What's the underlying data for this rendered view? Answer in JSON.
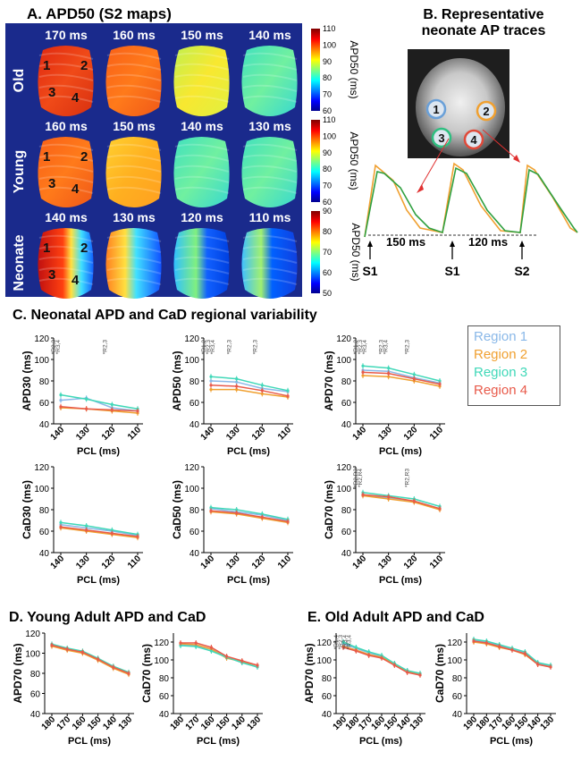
{
  "panels": {
    "a_title": "A. APD50 (S2 maps)",
    "b_title_line1": "B. Representative",
    "b_title_line2": "neonate AP traces",
    "c_title": "C. Neonatal APD and CaD regional variability",
    "d_title": "D. Young Adult APD and CaD",
    "e_title": "E. Old Adult APD and CaD"
  },
  "maps": {
    "rows": [
      {
        "label": "Old",
        "pcls": [
          "170 ms",
          "160 ms",
          "150 ms",
          "140 ms"
        ],
        "colorbar": {
          "label": "APD50 (ms)",
          "ticks": [
            "110",
            "100",
            "90",
            "80",
            "70",
            "60"
          ]
        }
      },
      {
        "label": "Young",
        "pcls": [
          "160 ms",
          "150 ms",
          "140 ms",
          "130 ms"
        ],
        "colorbar": {
          "label": "APD50 (ms)",
          "ticks": [
            "110",
            "100",
            "90",
            "80",
            "70",
            "60"
          ]
        }
      },
      {
        "label": "Neonate",
        "pcls": [
          "140 ms",
          "130 ms",
          "120 ms",
          "110 ms"
        ],
        "colorbar": {
          "label": "APD50 (ms)",
          "ticks": [
            "90",
            "80",
            "70",
            "60",
            "50"
          ]
        }
      }
    ],
    "region_numbers": [
      "1",
      "2",
      "3",
      "4"
    ]
  },
  "traces": {
    "region_circles": [
      {
        "label": "1",
        "color": "#6aa0d8"
      },
      {
        "label": "2",
        "color": "#f0a030"
      },
      {
        "label": "3",
        "color": "#2ebf80"
      },
      {
        "label": "4",
        "color": "#e04a3a"
      }
    ],
    "interval1": "150 ms",
    "interval2": "120 ms",
    "stim_labels": [
      "S1",
      "S1",
      "S2"
    ]
  },
  "legend": {
    "items": [
      {
        "label": "Region 1",
        "color": "#8ab8e8"
      },
      {
        "label": "Region 2",
        "color": "#f0a030"
      },
      {
        "label": "Region 3",
        "color": "#40d8b8"
      },
      {
        "label": "Region 4",
        "color": "#e85a4a"
      }
    ]
  },
  "chart_data": [
    {
      "type": "line",
      "id": "C-APD30",
      "xlabel": "PCL (ms)",
      "ylabel": "APD30 (ms)",
      "categories": [
        "140",
        "130",
        "120",
        "110"
      ],
      "ylim": [
        40,
        120
      ],
      "yticks": [
        "40",
        "60",
        "80",
        "100",
        "120"
      ],
      "series": [
        {
          "name": "Region 1",
          "values": [
            62,
            64,
            55,
            52
          ]
        },
        {
          "name": "Region 2",
          "values": [
            55,
            54,
            52,
            50
          ]
        },
        {
          "name": "Region 3",
          "values": [
            67,
            63,
            58,
            54
          ]
        },
        {
          "name": "Region 4",
          "values": [
            56,
            54,
            53,
            52
          ]
        }
      ],
      "annotations": [
        {
          "at": "140",
          "lines": [
            "*R2,3",
            "*R3,4"
          ]
        },
        {
          "at": "120",
          "lines": [
            "*R2,3"
          ]
        }
      ]
    },
    {
      "type": "line",
      "id": "C-APD50",
      "xlabel": "PCL (ms)",
      "ylabel": "APD50 (ms)",
      "categories": [
        "140",
        "130",
        "120",
        "110"
      ],
      "ylim": [
        40,
        120
      ],
      "yticks": [
        "40",
        "60",
        "80",
        "100",
        "120"
      ],
      "series": [
        {
          "name": "Region 1",
          "values": [
            80,
            79,
            73,
            70
          ]
        },
        {
          "name": "Region 2",
          "values": [
            72,
            72,
            68,
            65
          ]
        },
        {
          "name": "Region 3",
          "values": [
            84,
            82,
            76,
            71
          ]
        },
        {
          "name": "Region 4",
          "values": [
            76,
            75,
            71,
            66
          ]
        }
      ],
      "annotations": [
        {
          "at": "140",
          "lines": [
            "*R1,2",
            "*R2,3",
            "*R3,4"
          ]
        },
        {
          "at": "130",
          "lines": [
            "*R2,3"
          ]
        },
        {
          "at": "120",
          "lines": [
            "*R2,3"
          ]
        }
      ]
    },
    {
      "type": "line",
      "id": "C-APD70",
      "xlabel": "PCL (ms)",
      "ylabel": "APD70 (ms)",
      "categories": [
        "140",
        "130",
        "120",
        "110"
      ],
      "ylim": [
        40,
        120
      ],
      "yticks": [
        "40",
        "60",
        "80",
        "100",
        "120"
      ],
      "series": [
        {
          "name": "Region 1",
          "values": [
            90,
            89,
            83,
            78
          ]
        },
        {
          "name": "Region 2",
          "values": [
            85,
            84,
            80,
            75
          ]
        },
        {
          "name": "Region 3",
          "values": [
            94,
            92,
            86,
            80
          ]
        },
        {
          "name": "Region 4",
          "values": [
            88,
            87,
            82,
            77
          ]
        }
      ],
      "annotations": [
        {
          "at": "140",
          "lines": [
            "*R1,2",
            "*R2,3",
            "*R3,4"
          ]
        },
        {
          "at": "130",
          "lines": [
            "*R2,3",
            "*R3,4"
          ]
        },
        {
          "at": "120",
          "lines": [
            "*R2,3"
          ]
        }
      ]
    },
    {
      "type": "line",
      "id": "C-CaD30",
      "xlabel": "PCL (ms)",
      "ylabel": "CaD30 (ms)",
      "categories": [
        "140",
        "130",
        "120",
        "110"
      ],
      "ylim": [
        40,
        120
      ],
      "yticks": [
        "40",
        "60",
        "80",
        "100",
        "120"
      ],
      "series": [
        {
          "name": "Region 1",
          "values": [
            66,
            63,
            60,
            56
          ]
        },
        {
          "name": "Region 2",
          "values": [
            63,
            60,
            57,
            54
          ]
        },
        {
          "name": "Region 3",
          "values": [
            68,
            65,
            61,
            57
          ]
        },
        {
          "name": "Region 4",
          "values": [
            64,
            61,
            58,
            55
          ]
        }
      ],
      "annotations": []
    },
    {
      "type": "line",
      "id": "C-CaD50",
      "xlabel": "PCL (ms)",
      "ylabel": "CaD50 (ms)",
      "categories": [
        "140",
        "130",
        "120",
        "110"
      ],
      "ylim": [
        40,
        120
      ],
      "yticks": [
        "40",
        "60",
        "80",
        "100",
        "120"
      ],
      "series": [
        {
          "name": "Region 1",
          "values": [
            81,
            78,
            75,
            70
          ]
        },
        {
          "name": "Region 2",
          "values": [
            78,
            76,
            72,
            68
          ]
        },
        {
          "name": "Region 3",
          "values": [
            82,
            80,
            76,
            71
          ]
        },
        {
          "name": "Region 4",
          "values": [
            79,
            77,
            73,
            69
          ]
        }
      ],
      "annotations": []
    },
    {
      "type": "line",
      "id": "C-CaD70",
      "xlabel": "PCL (ms)",
      "ylabel": "CaD70 (ms)",
      "categories": [
        "140",
        "130",
        "120",
        "110"
      ],
      "ylim": [
        40,
        120
      ],
      "yticks": [
        "40",
        "60",
        "80",
        "100",
        "120"
      ],
      "series": [
        {
          "name": "Region 1",
          "values": [
            94,
            91,
            88,
            81
          ]
        },
        {
          "name": "Region 2",
          "values": [
            93,
            90,
            87,
            80
          ]
        },
        {
          "name": "Region 3",
          "values": [
            96,
            93,
            90,
            83
          ]
        },
        {
          "name": "Region 4",
          "values": [
            94,
            92,
            88,
            81
          ]
        }
      ],
      "annotations": [
        {
          "at": "140",
          "lines": [
            "*R2,R3",
            "*R2,R4"
          ]
        },
        {
          "at": "120",
          "lines": [
            "*R2,R3"
          ]
        }
      ]
    },
    {
      "type": "line",
      "id": "D-APD70",
      "xlabel": "PCL (ms)",
      "ylabel": "APD70 (ms)",
      "categories": [
        "180",
        "170",
        "160",
        "150",
        "140",
        "130"
      ],
      "ylim": [
        40,
        120
      ],
      "yticks": [
        "40",
        "60",
        "80",
        "100",
        "120"
      ],
      "series": [
        {
          "name": "Region 1",
          "values": [
            108,
            104,
            101,
            94,
            86,
            80
          ]
        },
        {
          "name": "Region 2",
          "values": [
            107,
            103,
            100,
            93,
            85,
            79
          ]
        },
        {
          "name": "Region 3",
          "values": [
            109,
            105,
            102,
            95,
            87,
            81
          ]
        },
        {
          "name": "Region 4",
          "values": [
            108,
            104,
            101,
            94,
            86,
            80
          ]
        }
      ],
      "annotations": []
    },
    {
      "type": "line",
      "id": "D-CaD70",
      "xlabel": "PCL (ms)",
      "ylabel": "CaD70 (ms)",
      "categories": [
        "180",
        "170",
        "160",
        "150",
        "140",
        "130"
      ],
      "ylim": [
        40,
        130
      ],
      "yticks": [
        "40",
        "60",
        "80",
        "100",
        "120"
      ],
      "series": [
        {
          "name": "Region 1",
          "values": [
            117,
            116,
            112,
            103,
            97,
            92
          ]
        },
        {
          "name": "Region 2",
          "values": [
            118,
            117,
            112,
            102,
            98,
            94
          ]
        },
        {
          "name": "Region 3",
          "values": [
            116,
            115,
            110,
            103,
            97,
            92
          ]
        },
        {
          "name": "Region 4",
          "values": [
            119,
            119,
            114,
            104,
            99,
            94
          ]
        }
      ],
      "annotations": []
    },
    {
      "type": "line",
      "id": "E-APD70",
      "xlabel": "PCL (ms)",
      "ylabel": "APD70 (ms)",
      "categories": [
        "190",
        "180",
        "170",
        "160",
        "150",
        "140",
        "130"
      ],
      "ylim": [
        40,
        130
      ],
      "yticks": [
        "40",
        "60",
        "80",
        "100",
        "120"
      ],
      "series": [
        {
          "name": "Region 1",
          "values": [
            118,
            113,
            108,
            104,
            96,
            88,
            84
          ]
        },
        {
          "name": "Region 2",
          "values": [
            115,
            111,
            106,
            103,
            95,
            87,
            83
          ]
        },
        {
          "name": "Region 3",
          "values": [
            120,
            114,
            109,
            105,
            96,
            88,
            85
          ]
        },
        {
          "name": "Region 4",
          "values": [
            114,
            110,
            105,
            102,
            94,
            86,
            83
          ]
        }
      ],
      "annotations": [
        {
          "at": "190",
          "lines": [
            "*R1,4",
            "*R2,3",
            "*R3,4"
          ]
        },
        {
          "at": "180",
          "lines": [
            "*R3,4"
          ]
        }
      ]
    },
    {
      "type": "line",
      "id": "E-CaD70",
      "xlabel": "PCL (ms)",
      "ylabel": "CaD70 (ms)",
      "categories": [
        "190",
        "180",
        "170",
        "160",
        "150",
        "140",
        "130"
      ],
      "ylim": [
        40,
        130
      ],
      "yticks": [
        "40",
        "60",
        "80",
        "100",
        "120"
      ],
      "series": [
        {
          "name": "Region 1",
          "values": [
            122,
            120,
            116,
            112,
            108,
            96,
            93
          ]
        },
        {
          "name": "Region 2",
          "values": [
            120,
            118,
            114,
            111,
            106,
            95,
            92
          ]
        },
        {
          "name": "Region 3",
          "values": [
            123,
            121,
            117,
            113,
            109,
            97,
            94
          ]
        },
        {
          "name": "Region 4",
          "values": [
            121,
            119,
            115,
            111,
            107,
            95,
            92
          ]
        }
      ],
      "annotations": []
    }
  ]
}
